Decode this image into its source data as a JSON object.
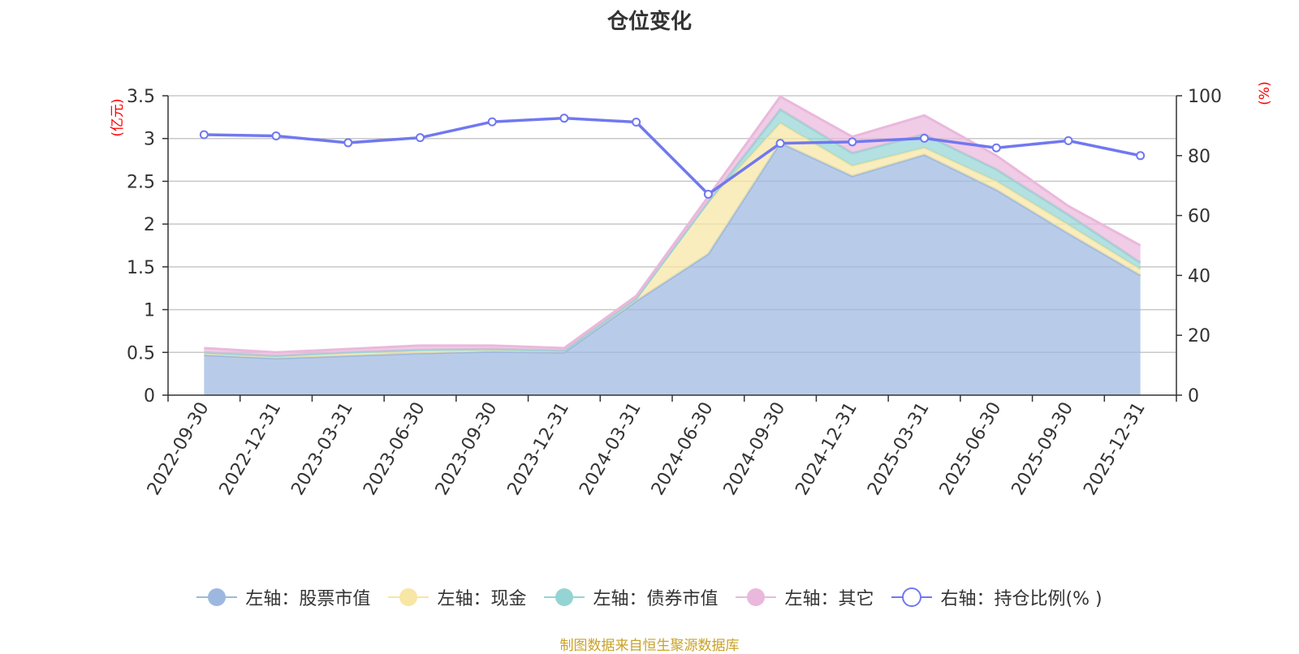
{
  "chart_data": {
    "type": "area",
    "title": "仓位变化",
    "y_left_label": "(亿元)",
    "y_right_label": "(%)",
    "categories": [
      "2022-09-30",
      "2022-12-31",
      "2023-03-31",
      "2023-06-30",
      "2023-09-30",
      "2023-12-31",
      "2024-03-31",
      "2024-06-30",
      "2024-09-30",
      "2024-12-31",
      "2025-03-31",
      "2025-06-30",
      "2025-09-30",
      "2025-12-31"
    ],
    "series": [
      {
        "name": "左轴：股票市值",
        "axis": "left",
        "color": "#9db8e0",
        "values": [
          0.47,
          0.43,
          0.46,
          0.49,
          0.51,
          0.5,
          1.1,
          1.65,
          2.95,
          2.56,
          2.81,
          2.4,
          1.89,
          1.4
        ]
      },
      {
        "name": "左轴：现金",
        "axis": "left",
        "color": "#f7e6a4",
        "values": [
          0.03,
          0.03,
          0.04,
          0.04,
          0.03,
          0.02,
          0.03,
          0.61,
          0.23,
          0.12,
          0.08,
          0.1,
          0.1,
          0.07
        ]
      },
      {
        "name": "左轴：债券市值",
        "axis": "left",
        "color": "#95d4d4",
        "values": [
          0.0,
          0.0,
          0.0,
          0.0,
          0.0,
          0.0,
          0.0,
          0.0,
          0.16,
          0.15,
          0.16,
          0.14,
          0.12,
          0.08
        ]
      },
      {
        "name": "左轴：其它",
        "axis": "left",
        "color": "#eab8dc",
        "values": [
          0.05,
          0.04,
          0.04,
          0.05,
          0.04,
          0.03,
          0.03,
          0.06,
          0.15,
          0.19,
          0.22,
          0.16,
          0.1,
          0.2
        ]
      },
      {
        "name": "右轴：持仓比例(% )",
        "axis": "right",
        "type": "line",
        "color": "#7078f0",
        "values": [
          87.0,
          86.6,
          84.3,
          86.0,
          91.3,
          92.5,
          91.2,
          67.1,
          84.1,
          84.6,
          85.8,
          82.6,
          85.0,
          80.0
        ]
      }
    ],
    "ylim_left": [
      0,
      3.5
    ],
    "ylim_right": [
      0,
      100
    ],
    "y_left_ticks": [
      "0",
      "0.5",
      "1",
      "1.5",
      "2",
      "2.5",
      "3",
      "3.5"
    ],
    "y_right_ticks": [
      "0",
      "20",
      "40",
      "60",
      "80",
      "100"
    ],
    "grid": true,
    "legend_position": "bottom"
  },
  "source_note": "制图数据来自恒生聚源数据库"
}
